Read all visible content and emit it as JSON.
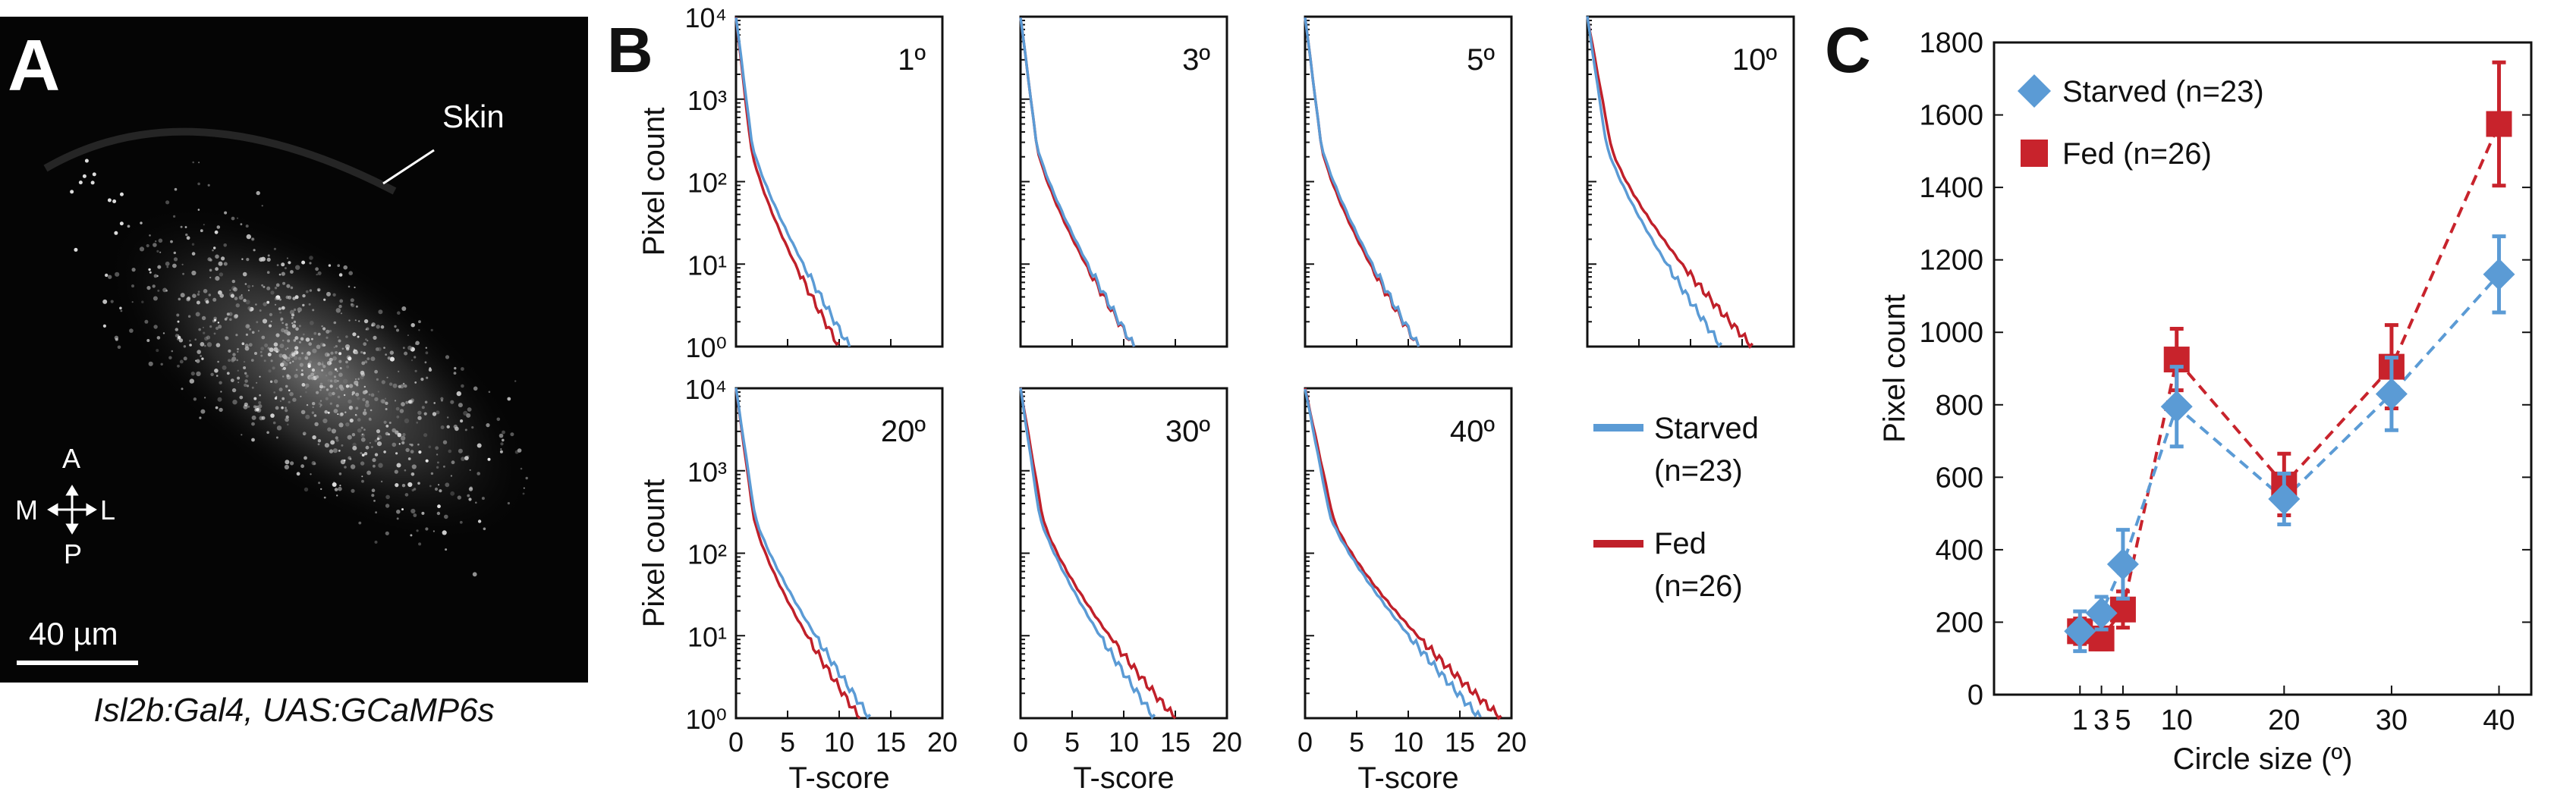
{
  "panelA": {
    "letter": "A",
    "skin_label": "Skin",
    "compass": {
      "top": "A",
      "left": "M",
      "right": "L",
      "bottom": "P"
    },
    "scale_bar": "40 µm",
    "caption": "Isl2b:Gal4, UAS:GCaMP6s"
  },
  "panelB": {
    "letter": "B",
    "colors": {
      "starved": "#5b9bd5",
      "fed": "#c0202a"
    },
    "legend": {
      "starved": "Starved",
      "starved_n": "(n=23)",
      "fed": "Fed",
      "fed_n": "(n=26)"
    }
  },
  "panelC": {
    "letter": "C",
    "colors": {
      "starved": "#5b9bd5",
      "fed": "#c8232c"
    }
  },
  "chart_data": [
    {
      "type": "line",
      "panel": "B",
      "subplots": [
        "1º",
        "3º",
        "5º",
        "10º",
        "20º",
        "30º",
        "40º"
      ],
      "xlabel": "T-score",
      "ylabel": "Pixel count",
      "xlim": [
        0,
        20
      ],
      "xticks": [
        "0",
        "5",
        "10",
        "15",
        "20"
      ],
      "yscale": "log",
      "ylim": [
        1,
        10000
      ],
      "yticks": [
        "10⁰",
        "10¹",
        "10²",
        "10³",
        "10⁴"
      ],
      "series_names": [
        "Starved",
        "Fed"
      ],
      "approx_tail_end_tscore": {
        "1º": {
          "Starved": 11,
          "Fed": 10
        },
        "3º": {
          "Starved": 11,
          "Fed": 11
        },
        "5º": {
          "Starved": 11,
          "Fed": 11
        },
        "10º": {
          "Starved": 13,
          "Fed": 16
        },
        "20º": {
          "Starved": 13,
          "Fed": 12
        },
        "30º": {
          "Starved": 13,
          "Fed": 15
        },
        "40º": {
          "Starved": 17,
          "Fed": 19
        }
      }
    },
    {
      "type": "line",
      "panel": "C",
      "xlabel": "Circle size (º)",
      "ylabel": "Pixel count",
      "x": [
        1,
        3,
        5,
        10,
        20,
        30,
        40
      ],
      "xticks": [
        "1",
        "3",
        "5",
        "10",
        "20",
        "30",
        "40"
      ],
      "ylim": [
        0,
        1800
      ],
      "yticks": [
        "0",
        "200",
        "400",
        "600",
        "800",
        "1000",
        "1200",
        "1400",
        "1600",
        "1800"
      ],
      "series": [
        {
          "name": "Starved (n=23)",
          "marker": "diamond",
          "values": [
            175,
            225,
            360,
            795,
            540,
            830,
            1160
          ],
          "errors": [
            55,
            45,
            95,
            110,
            70,
            100,
            105
          ]
        },
        {
          "name": "Fed (n=26)",
          "marker": "square",
          "values": [
            175,
            155,
            235,
            925,
            580,
            905,
            1575
          ],
          "errors": [
            35,
            30,
            50,
            85,
            85,
            115,
            170
          ]
        }
      ]
    }
  ]
}
